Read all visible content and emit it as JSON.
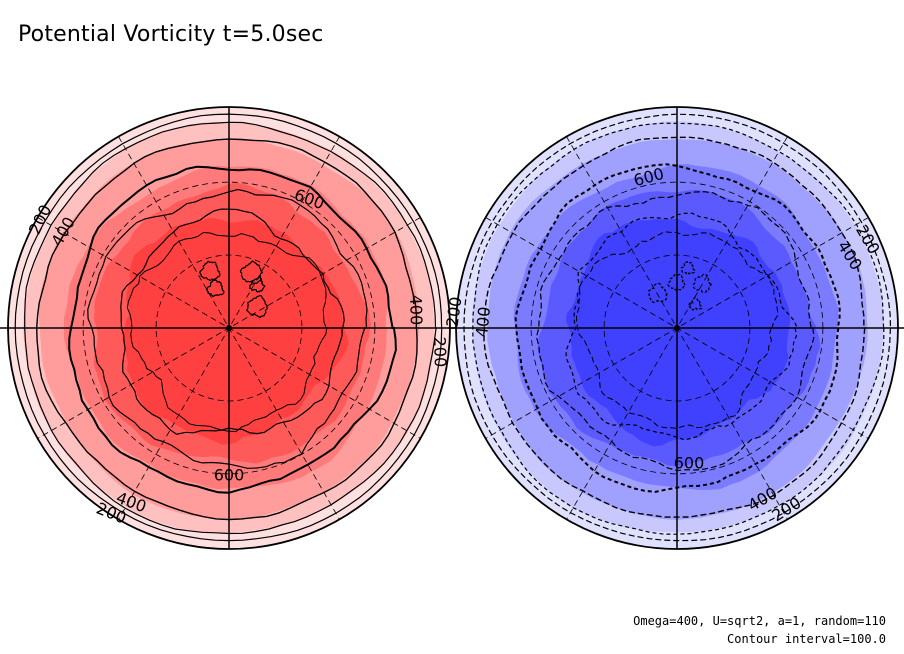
{
  "title": "Potential Vorticity t=5.0sec",
  "notes": {
    "params": "Omega=400, U=sqrt2, a=1, random=110",
    "interval": "Contour interval=100.0"
  },
  "colors": {
    "north_fills": [
      "#ffe0e0",
      "#ffc0c0",
      "#ff9d9d",
      "#ff7b7b",
      "#ff5a5a",
      "#ff4040"
    ],
    "south_fills": [
      "#e0e0ff",
      "#c8c8ff",
      "#a0a0ff",
      "#7b7bff",
      "#5a5aff",
      "#4040ff"
    ],
    "line": "#000000"
  },
  "chart_data": [
    {
      "type": "contour",
      "panel": "northern hemisphere (polar stereographic)",
      "variable": "Potential Vorticity",
      "time": "t=5.0sec",
      "contour_interval": 100.0,
      "fill_levels": [
        0,
        100,
        200,
        300,
        400,
        500,
        600
      ],
      "contour_labels": [
        {
          "text": "200"
        },
        {
          "text": "400"
        },
        {
          "text": "600"
        },
        {
          "text": "400"
        },
        {
          "text": "200"
        },
        {
          "text": "600"
        },
        {
          "text": "400"
        },
        {
          "text": "200"
        }
      ],
      "negative_dashed": false
    },
    {
      "type": "contour",
      "panel": "southern hemisphere (polar stereographic)",
      "variable": "Potential Vorticity",
      "time": "t=5.0sec",
      "contour_interval": 100.0,
      "fill_levels": [
        0,
        100,
        200,
        300,
        400,
        500,
        600
      ],
      "contour_labels": [
        {
          "text": "600"
        },
        {
          "text": "200"
        },
        {
          "text": "400"
        },
        {
          "text": "200"
        },
        {
          "text": "400"
        },
        {
          "text": "600"
        },
        {
          "text": "400"
        },
        {
          "text": "200"
        }
      ],
      "negative_dashed": true
    }
  ]
}
